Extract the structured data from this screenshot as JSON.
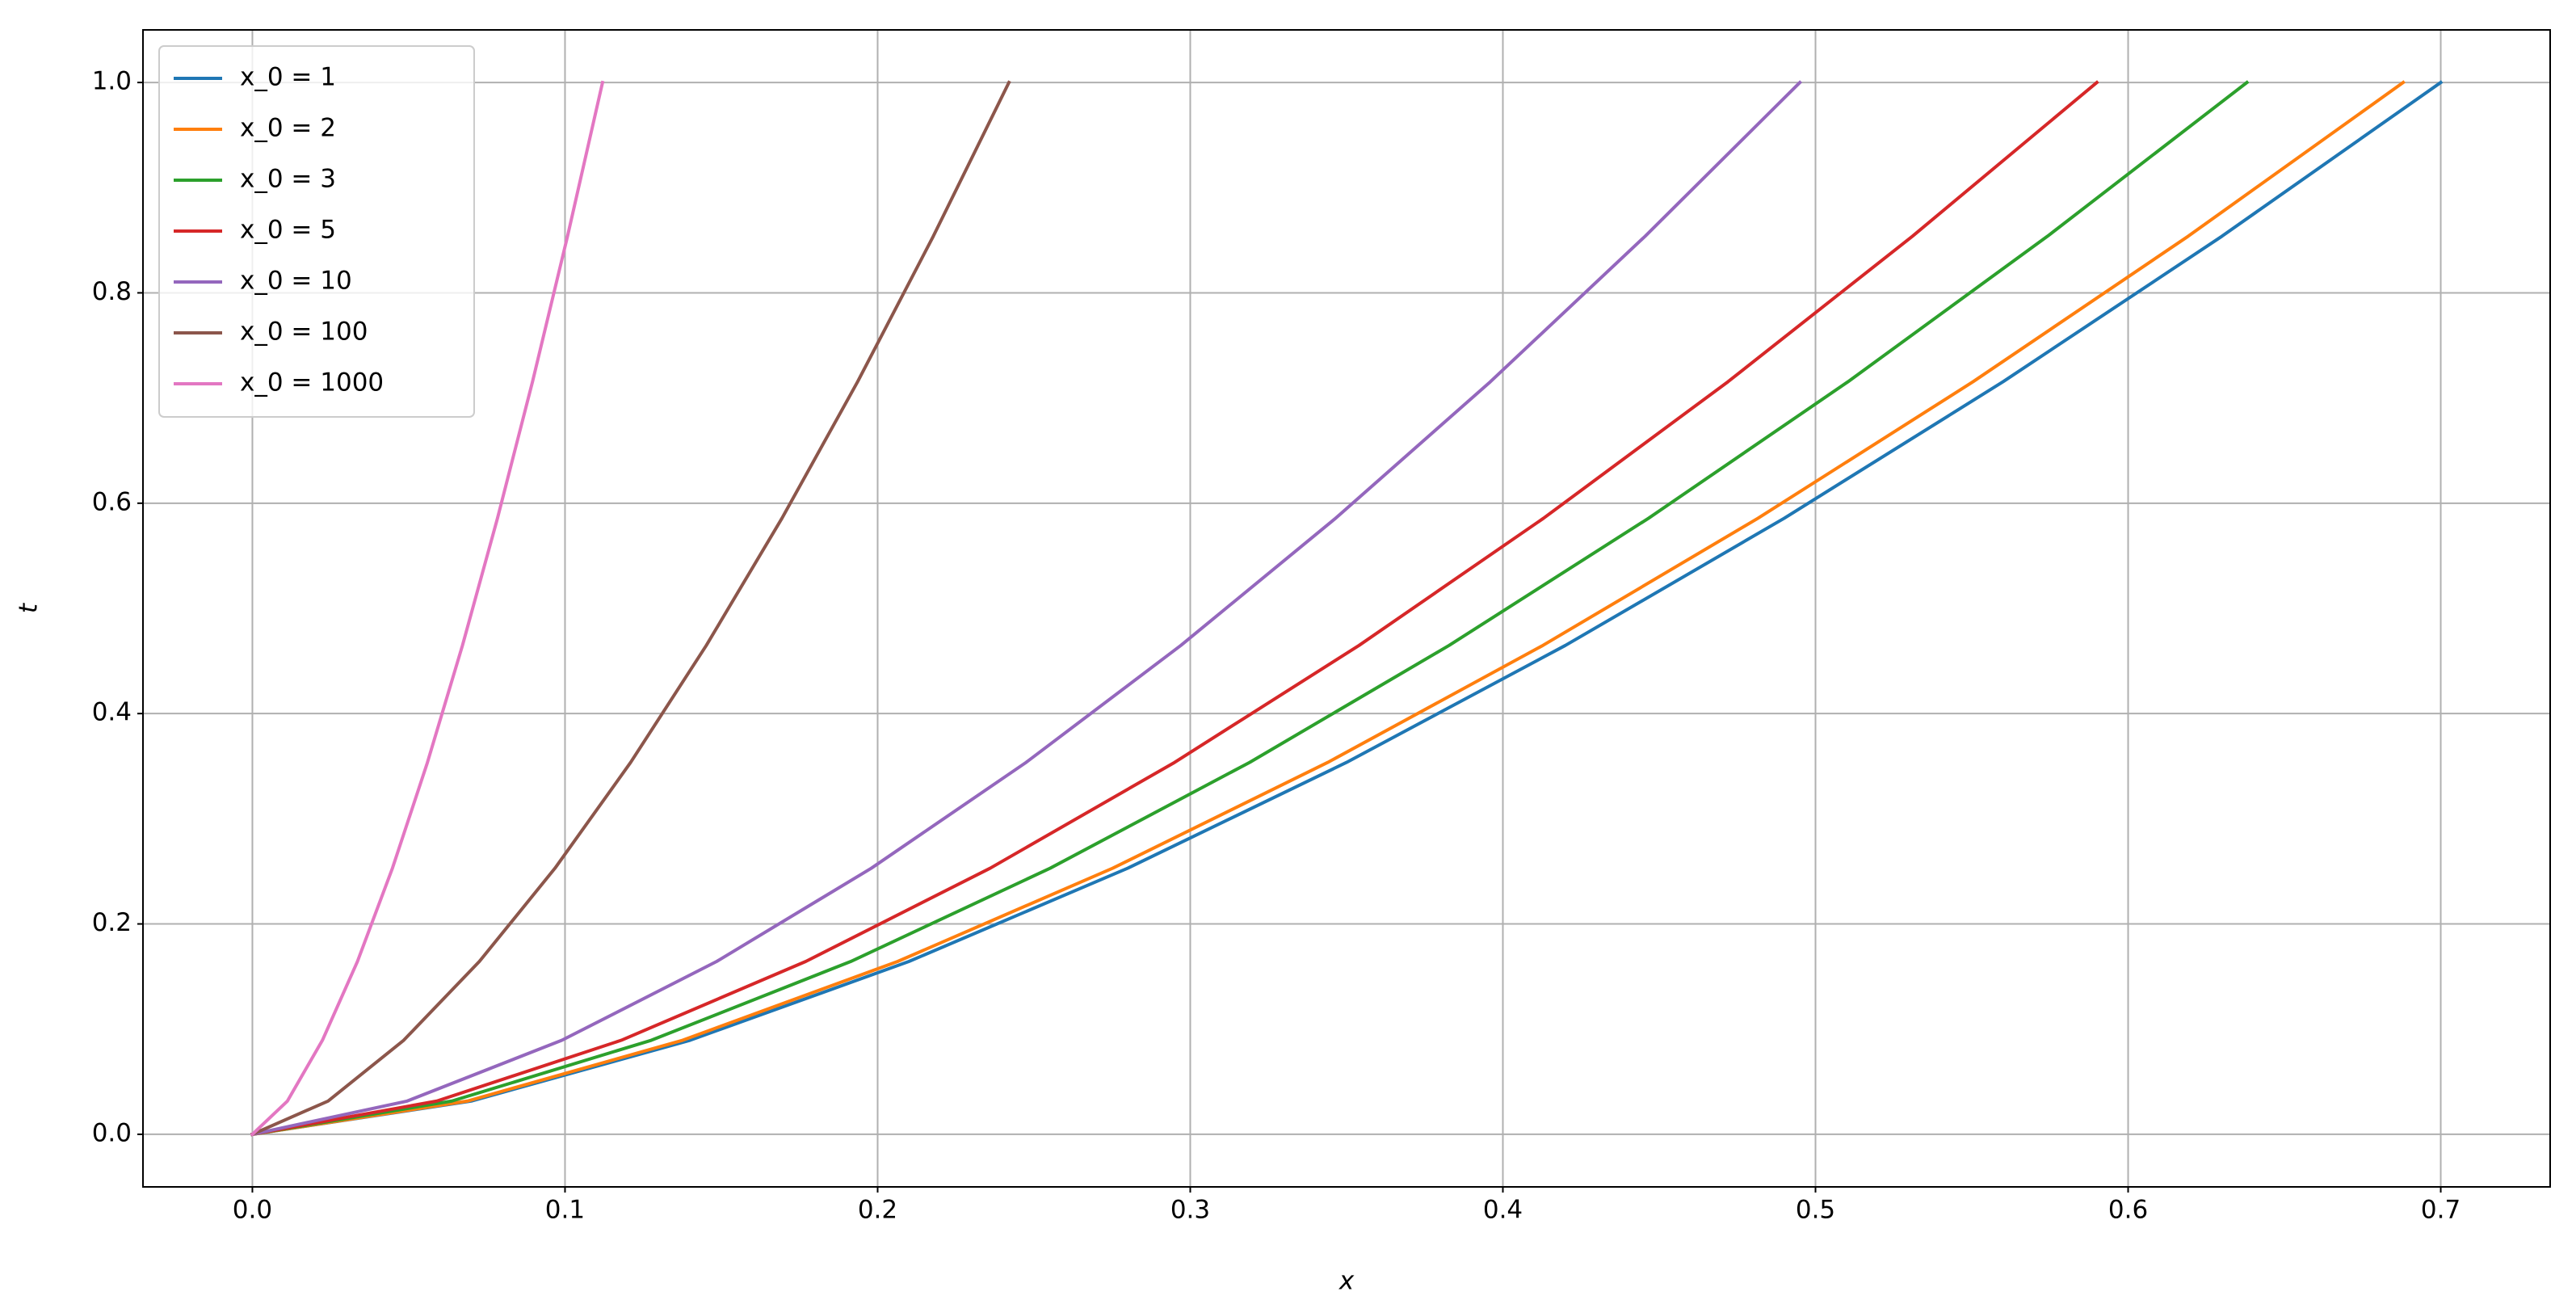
{
  "chart_data": {
    "type": "line",
    "x_label": "x",
    "y_label": "t",
    "xlim": [
      -0.035,
      0.735
    ],
    "ylim": [
      -0.05,
      1.05
    ],
    "xticks": [
      {
        "value": 0,
        "label": "0.0"
      },
      0.1,
      0.2,
      0.3,
      0.4,
      0.5,
      0.6,
      0.7
    ],
    "yticks": [
      {
        "value": 0,
        "label": "0.0"
      },
      0.2,
      0.4,
      0.6,
      0.8,
      {
        "value": 1,
        "label": "1.0"
      }
    ],
    "grid": true,
    "legend": "upper left",
    "series": [
      {
        "name": "x_0 = 1",
        "color": "#1f77b4",
        "x": [
          0,
          0.07,
          0.14,
          0.21,
          0.28,
          0.35,
          0.42,
          0.49,
          0.56,
          0.63,
          0.7
        ],
        "values": [
          0,
          0.0316,
          0.0894,
          0.1643,
          0.253,
          0.3536,
          0.4648,
          0.5857,
          0.7155,
          0.8538,
          1
        ]
      },
      {
        "name": "x_0 = 2",
        "color": "#ff7f0e",
        "x": [
          0,
          0.0688,
          0.1376,
          0.2064,
          0.2752,
          0.344,
          0.4128,
          0.4816,
          0.5504,
          0.6192,
          0.688
        ],
        "values": [
          0,
          0.0316,
          0.0894,
          0.1643,
          0.253,
          0.3536,
          0.4648,
          0.5857,
          0.7155,
          0.8538,
          1
        ]
      },
      {
        "name": "x_0 = 3",
        "color": "#2ca02c",
        "x": [
          0,
          0.0638,
          0.1276,
          0.1914,
          0.2552,
          0.319,
          0.3828,
          0.4466,
          0.5104,
          0.5742,
          0.638
        ],
        "values": [
          0,
          0.0316,
          0.0894,
          0.1643,
          0.253,
          0.3536,
          0.4648,
          0.5857,
          0.7155,
          0.8538,
          1
        ]
      },
      {
        "name": "x_0 = 5",
        "color": "#d62728",
        "x": [
          0,
          0.059,
          0.118,
          0.177,
          0.236,
          0.295,
          0.354,
          0.413,
          0.472,
          0.531,
          0.59
        ],
        "values": [
          0,
          0.0316,
          0.0894,
          0.1643,
          0.253,
          0.3536,
          0.4648,
          0.5857,
          0.7155,
          0.8538,
          1
        ]
      },
      {
        "name": "x_0 = 10",
        "color": "#9467bd",
        "x": [
          0,
          0.0495,
          0.099,
          0.1485,
          0.198,
          0.2475,
          0.297,
          0.3465,
          0.396,
          0.4455,
          0.495
        ],
        "values": [
          0,
          0.0316,
          0.0894,
          0.1643,
          0.253,
          0.3536,
          0.4648,
          0.5857,
          0.7155,
          0.8538,
          1
        ]
      },
      {
        "name": "x_0 = 100",
        "color": "#8c564b",
        "x": [
          0,
          0.0242,
          0.0484,
          0.0726,
          0.0968,
          0.121,
          0.1452,
          0.1694,
          0.1936,
          0.2178,
          0.242
        ],
        "values": [
          0,
          0.0316,
          0.0894,
          0.1643,
          0.253,
          0.3536,
          0.4648,
          0.5857,
          0.7155,
          0.8538,
          1
        ]
      },
      {
        "name": "x_0 = 1000",
        "color": "#e377c2",
        "x": [
          0,
          0.0112,
          0.0224,
          0.0336,
          0.0448,
          0.056,
          0.0672,
          0.0784,
          0.0896,
          0.1008,
          0.112
        ],
        "values": [
          0,
          0.0316,
          0.0894,
          0.1643,
          0.253,
          0.3536,
          0.4648,
          0.5857,
          0.7155,
          0.8538,
          1
        ]
      }
    ]
  }
}
